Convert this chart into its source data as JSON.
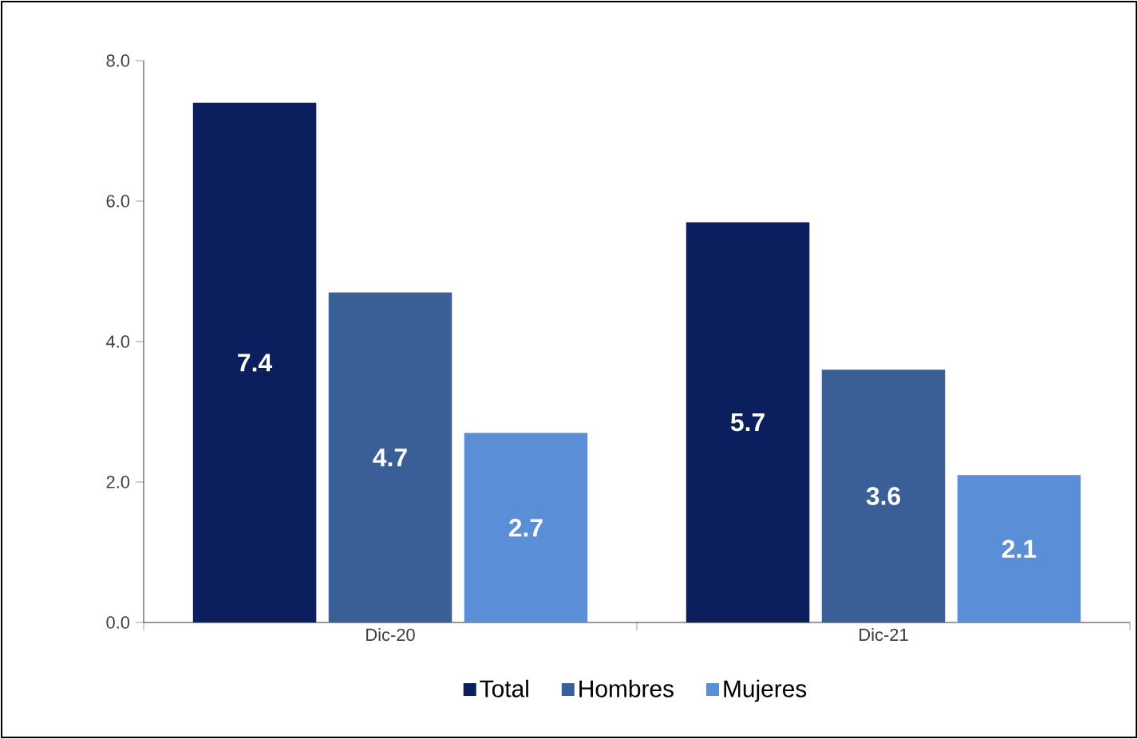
{
  "chart_data": {
    "type": "bar",
    "categories": [
      "Dic-20",
      "Dic-21"
    ],
    "series": [
      {
        "name": "Total",
        "color": "#0b1f5e",
        "values": [
          7.4,
          5.7
        ]
      },
      {
        "name": "Hombres",
        "color": "#3a5e96",
        "values": [
          4.7,
          3.6
        ]
      },
      {
        "name": "Mujeres",
        "color": "#5a8ed6",
        "values": [
          2.7,
          2.1
        ]
      }
    ],
    "ylim": [
      0,
      8
    ],
    "yticks": [
      {
        "value": 0,
        "label": "0.0"
      },
      {
        "value": 2,
        "label": "2.0"
      },
      {
        "value": 4,
        "label": "4.0"
      },
      {
        "value": 6,
        "label": "6.0"
      },
      {
        "value": 8,
        "label": "8.0"
      }
    ],
    "data_labels": true,
    "legend": "bottom",
    "grid": false
  }
}
